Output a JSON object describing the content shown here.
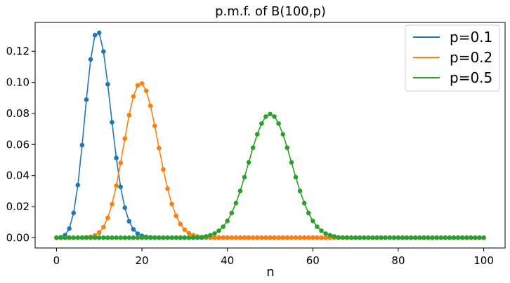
{
  "chart_data": {
    "type": "line",
    "title": "p.m.f. of B(100,p)",
    "xlabel": "n",
    "ylabel": "",
    "xlim": [
      -5,
      105
    ],
    "ylim": [
      -0.0066,
      0.1386
    ],
    "x_ticks": [
      0,
      20,
      40,
      60,
      80,
      100
    ],
    "x_tick_labels": [
      "0",
      "20",
      "40",
      "60",
      "80",
      "100"
    ],
    "y_ticks": [
      0.0,
      0.02,
      0.04,
      0.06,
      0.08,
      0.1,
      0.12
    ],
    "y_tick_labels": [
      "0.00",
      "0.02",
      "0.04",
      "0.06",
      "0.08",
      "0.10",
      "0.12"
    ],
    "grid": false,
    "legend_position": "top-right",
    "series": [
      {
        "name": "p=0.1",
        "color": "#1f77b4",
        "x": [
          0,
          1,
          2,
          3,
          4,
          5,
          6,
          7,
          8,
          9,
          10,
          11,
          12,
          13,
          14,
          15,
          16,
          17,
          18,
          19,
          20,
          21,
          22,
          23,
          24,
          25,
          26,
          27,
          28,
          29,
          30,
          31,
          32,
          33,
          34,
          35,
          36,
          37,
          38,
          39,
          40,
          41,
          42,
          43,
          44,
          45,
          46,
          47,
          48,
          49,
          50,
          51,
          52,
          53,
          54,
          55,
          56,
          57,
          58,
          59,
          60,
          61,
          62,
          63,
          64,
          65,
          66,
          67,
          68,
          69,
          70,
          71,
          72,
          73,
          74,
          75,
          76,
          77,
          78,
          79,
          80,
          81,
          82,
          83,
          84,
          85,
          86,
          87,
          88,
          89,
          90,
          91,
          92,
          93,
          94,
          95,
          96,
          97,
          98,
          99,
          100
        ],
        "values": [
          0.0,
          0.0003,
          0.0016,
          0.0059,
          0.0159,
          0.0339,
          0.0596,
          0.0889,
          0.1148,
          0.1304,
          0.1319,
          0.1199,
          0.0988,
          0.0743,
          0.0513,
          0.0327,
          0.0193,
          0.0106,
          0.0054,
          0.0026,
          0.0012,
          0.0005,
          0.0002,
          0.0001,
          0.0,
          0,
          0,
          0,
          0,
          0,
          0,
          0,
          0,
          0,
          0,
          0,
          0,
          0,
          0,
          0,
          0,
          0,
          0,
          0,
          0,
          0,
          0,
          0,
          0,
          0,
          0,
          0,
          0,
          0,
          0,
          0,
          0,
          0,
          0,
          0,
          0,
          0,
          0,
          0,
          0,
          0,
          0,
          0,
          0,
          0,
          0,
          0,
          0,
          0,
          0,
          0,
          0,
          0,
          0,
          0,
          0,
          0,
          0,
          0,
          0,
          0,
          0,
          0,
          0,
          0,
          0,
          0,
          0,
          0,
          0,
          0,
          0,
          0,
          0,
          0,
          0
        ]
      },
      {
        "name": "p=0.2",
        "color": "#ff7f0e",
        "x": [
          0,
          1,
          2,
          3,
          4,
          5,
          6,
          7,
          8,
          9,
          10,
          11,
          12,
          13,
          14,
          15,
          16,
          17,
          18,
          19,
          20,
          21,
          22,
          23,
          24,
          25,
          26,
          27,
          28,
          29,
          30,
          31,
          32,
          33,
          34,
          35,
          36,
          37,
          38,
          39,
          40,
          41,
          42,
          43,
          44,
          45,
          46,
          47,
          48,
          49,
          50,
          51,
          52,
          53,
          54,
          55,
          56,
          57,
          58,
          59,
          60,
          61,
          62,
          63,
          64,
          65,
          66,
          67,
          68,
          69,
          70,
          71,
          72,
          73,
          74,
          75,
          76,
          77,
          78,
          79,
          80,
          81,
          82,
          83,
          84,
          85,
          86,
          87,
          88,
          89,
          90,
          91,
          92,
          93,
          94,
          95,
          96,
          97,
          98,
          99,
          100
        ],
        "values": [
          0,
          0,
          0,
          0,
          0,
          0.0,
          0.0001,
          0.0003,
          0.0006,
          0.0015,
          0.0034,
          0.0069,
          0.0128,
          0.0216,
          0.0335,
          0.0481,
          0.0638,
          0.0789,
          0.0909,
          0.0981,
          0.0993,
          0.0946,
          0.0849,
          0.072,
          0.0577,
          0.0439,
          0.0316,
          0.0217,
          0.0141,
          0.0088,
          0.0052,
          0.0029,
          0.0016,
          0.0008,
          0.0004,
          0.0002,
          0.0001,
          0.0,
          0,
          0,
          0,
          0,
          0,
          0,
          0,
          0,
          0,
          0,
          0,
          0,
          0,
          0,
          0,
          0,
          0,
          0,
          0,
          0,
          0,
          0,
          0,
          0,
          0,
          0,
          0,
          0,
          0,
          0,
          0,
          0,
          0,
          0,
          0,
          0,
          0,
          0,
          0,
          0,
          0,
          0,
          0,
          0,
          0,
          0,
          0,
          0,
          0,
          0,
          0,
          0,
          0,
          0,
          0,
          0,
          0,
          0,
          0,
          0,
          0,
          0,
          0
        ]
      },
      {
        "name": "p=0.5",
        "color": "#2ca02c",
        "x": [
          0,
          1,
          2,
          3,
          4,
          5,
          6,
          7,
          8,
          9,
          10,
          11,
          12,
          13,
          14,
          15,
          16,
          17,
          18,
          19,
          20,
          21,
          22,
          23,
          24,
          25,
          26,
          27,
          28,
          29,
          30,
          31,
          32,
          33,
          34,
          35,
          36,
          37,
          38,
          39,
          40,
          41,
          42,
          43,
          44,
          45,
          46,
          47,
          48,
          49,
          50,
          51,
          52,
          53,
          54,
          55,
          56,
          57,
          58,
          59,
          60,
          61,
          62,
          63,
          64,
          65,
          66,
          67,
          68,
          69,
          70,
          71,
          72,
          73,
          74,
          75,
          76,
          77,
          78,
          79,
          80,
          81,
          82,
          83,
          84,
          85,
          86,
          87,
          88,
          89,
          90,
          91,
          92,
          93,
          94,
          95,
          96,
          97,
          98,
          99,
          100
        ],
        "values": [
          0,
          0,
          0,
          0,
          0,
          0,
          0,
          0,
          0,
          0,
          0,
          0,
          0,
          0,
          0,
          0,
          0,
          0,
          0,
          0,
          0,
          0,
          0,
          0,
          0,
          0,
          0,
          0,
          0,
          0,
          0.0,
          0.0,
          0.0001,
          0.0001,
          0.0002,
          0.0009,
          0.0016,
          0.0027,
          0.0045,
          0.0071,
          0.0108,
          0.0159,
          0.0223,
          0.0301,
          0.039,
          0.0485,
          0.058,
          0.0666,
          0.0735,
          0.078,
          0.0796,
          0.078,
          0.0735,
          0.0666,
          0.058,
          0.0485,
          0.039,
          0.0301,
          0.0223,
          0.0159,
          0.0108,
          0.0071,
          0.0045,
          0.0027,
          0.0016,
          0.0009,
          0.0002,
          0.0001,
          0.0001,
          0.0,
          0,
          0,
          0,
          0,
          0,
          0,
          0,
          0,
          0,
          0,
          0,
          0,
          0,
          0,
          0,
          0,
          0,
          0,
          0,
          0,
          0,
          0,
          0,
          0,
          0,
          0,
          0,
          0,
          0,
          0,
          0
        ]
      }
    ]
  }
}
